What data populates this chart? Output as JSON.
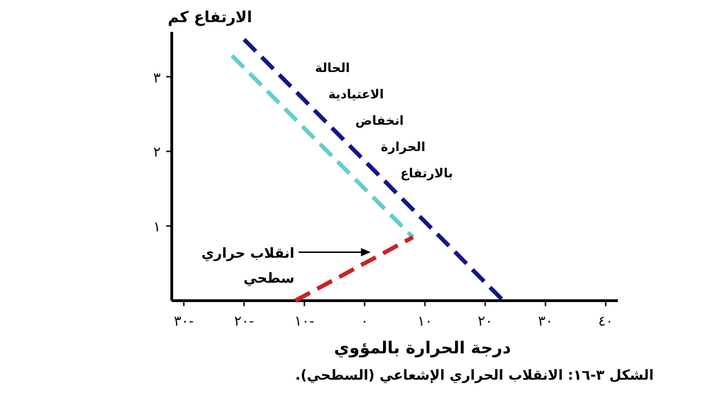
{
  "chart_data": {
    "type": "line",
    "ylabel": "الارتفاع كم",
    "xlabel": "درجة الحرارة بالمؤوي",
    "xlim": [
      -32,
      42
    ],
    "ylim": [
      0,
      3.6
    ],
    "xticks": [
      {
        "value": -30,
        "label": "٣٠-"
      },
      {
        "value": -20,
        "label": "٢٠-"
      },
      {
        "value": -10,
        "label": "١٠-"
      },
      {
        "value": 0,
        "label": "٠"
      },
      {
        "value": 10,
        "label": "١٠"
      },
      {
        "value": 20,
        "label": "٢٠"
      },
      {
        "value": 30,
        "label": "٣٠"
      },
      {
        "value": 40,
        "label": "٤٠"
      }
    ],
    "yticks": [
      {
        "value": 1,
        "label": "١"
      },
      {
        "value": 2,
        "label": "٢"
      },
      {
        "value": 3,
        "label": "٣"
      }
    ],
    "series": [
      {
        "color": "#14148c",
        "x": [
          -20,
          23
        ],
        "values": [
          3.5,
          0
        ]
      },
      {
        "color": "#66cccc",
        "x": [
          -22,
          8
        ],
        "values": [
          3.28,
          0.85
        ]
      },
      {
        "color": "#cc2222",
        "x": [
          -11.5,
          8
        ],
        "values": [
          0,
          0.85
        ]
      }
    ],
    "line_style": "dashed",
    "grid": false,
    "annotations": [
      "الحالة\nالاعتيادية\nانخفاض\nالحرارة\nبالارتفاع",
      {
        "text": "انقلاب حراري\nسطحي",
        "x": 1,
        "y": 0.65
      },
      "الشكل ٣-١٦: الانقلاب الحراري الإشعاعي (السطحي)."
    ]
  }
}
